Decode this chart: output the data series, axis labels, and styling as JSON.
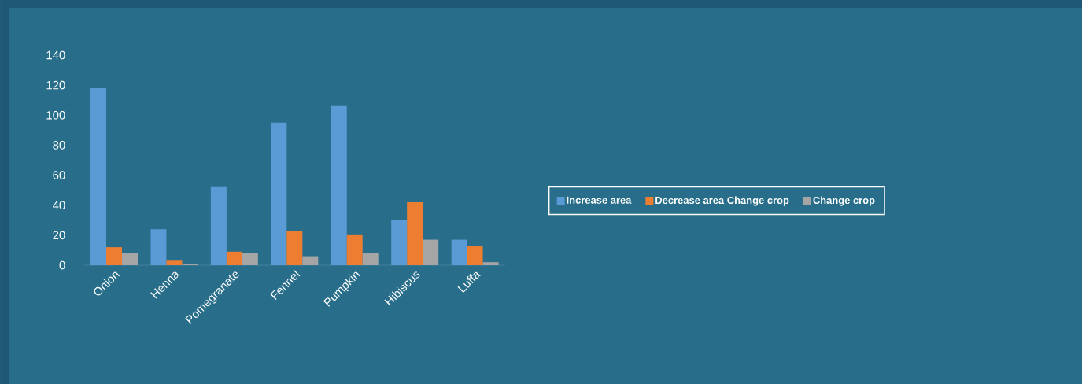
{
  "chart_data": {
    "type": "bar",
    "categories": [
      "Onion",
      "Henna",
      "Pomegranate",
      "Fennel",
      "Pumpkin",
      "Hibiscus",
      "Luffa"
    ],
    "series": [
      {
        "name": "Increase area",
        "color": "#5b9bd5",
        "values": [
          118,
          24,
          52,
          95,
          106,
          30,
          17
        ]
      },
      {
        "name": "Decrease area Change crop",
        "color": "#ed7d31",
        "values": [
          12,
          3,
          9,
          23,
          20,
          42,
          13
        ]
      },
      {
        "name": "Change crop",
        "color": "#a5a5a5",
        "values": [
          8,
          1,
          8,
          6,
          8,
          17,
          2
        ]
      }
    ],
    "ylim": [
      0,
      140
    ],
    "yticks": [
      0,
      20,
      40,
      60,
      80,
      100,
      120,
      140
    ],
    "grid": false,
    "legend": "right"
  }
}
